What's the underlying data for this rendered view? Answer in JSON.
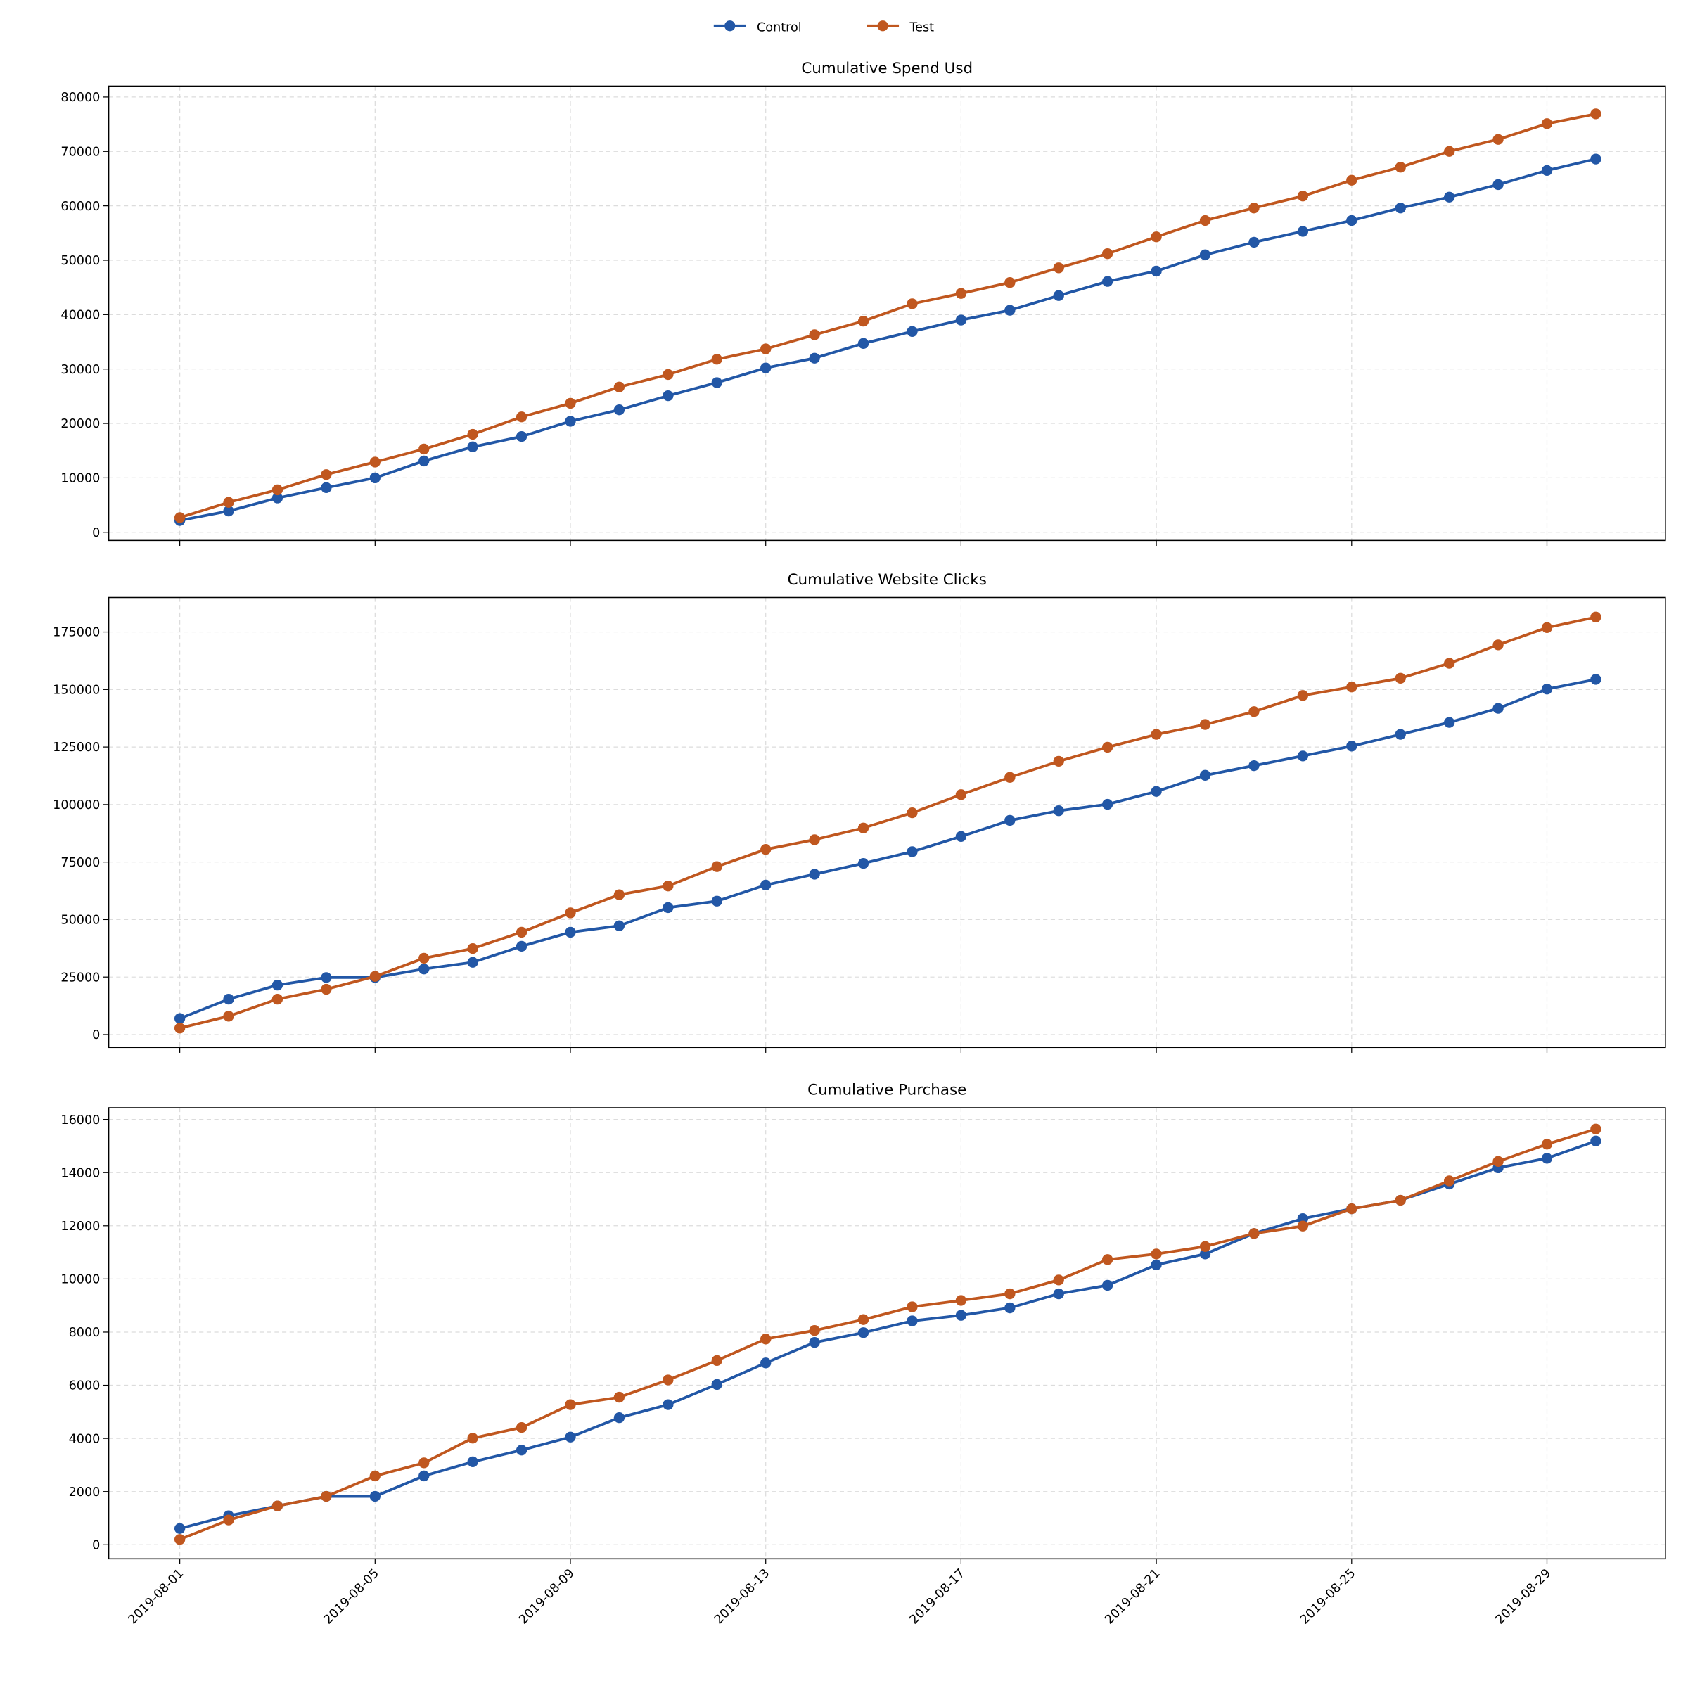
{
  "chart_data": [
    {
      "type": "line",
      "title": "Cumulative Spend Usd",
      "x": [
        "2019-08-01",
        "2019-08-02",
        "2019-08-03",
        "2019-08-04",
        "2019-08-05",
        "2019-08-06",
        "2019-08-07",
        "2019-08-08",
        "2019-08-09",
        "2019-08-10",
        "2019-08-11",
        "2019-08-12",
        "2019-08-13",
        "2019-08-14",
        "2019-08-15",
        "2019-08-16",
        "2019-08-17",
        "2019-08-18",
        "2019-08-19",
        "2019-08-20",
        "2019-08-21",
        "2019-08-22",
        "2019-08-23",
        "2019-08-24",
        "2019-08-25",
        "2019-08-26",
        "2019-08-27",
        "2019-08-28",
        "2019-08-29",
        "2019-08-30"
      ],
      "ylim": [
        -1500,
        82000
      ],
      "yticks": [
        0,
        10000,
        20000,
        30000,
        40000,
        50000,
        60000,
        70000,
        80000
      ],
      "grid": true,
      "series": [
        {
          "name": "Control",
          "values": [
            2160,
            3900,
            6300,
            8200,
            10000,
            13100,
            15700,
            17600,
            20400,
            22500,
            25100,
            27500,
            30200,
            32000,
            34700,
            36900,
            39000,
            40800,
            43500,
            46100,
            48000,
            51000,
            53300,
            55300,
            57300,
            59600,
            61600,
            63900,
            66500,
            68600
          ]
        },
        {
          "name": "Test",
          "values": [
            2700,
            5500,
            7800,
            10600,
            12900,
            15300,
            18000,
            21200,
            23700,
            26700,
            29000,
            31800,
            33700,
            36300,
            38800,
            42000,
            43900,
            45900,
            48600,
            51200,
            54300,
            57300,
            59600,
            61800,
            64700,
            67100,
            70000,
            72200,
            75100,
            76900
          ]
        }
      ]
    },
    {
      "type": "line",
      "title": "Cumulative Website Clicks",
      "x": [
        "2019-08-01",
        "2019-08-02",
        "2019-08-03",
        "2019-08-04",
        "2019-08-05",
        "2019-08-06",
        "2019-08-07",
        "2019-08-08",
        "2019-08-09",
        "2019-08-10",
        "2019-08-11",
        "2019-08-12",
        "2019-08-13",
        "2019-08-14",
        "2019-08-15",
        "2019-08-16",
        "2019-08-17",
        "2019-08-18",
        "2019-08-19",
        "2019-08-20",
        "2019-08-21",
        "2019-08-22",
        "2019-08-23",
        "2019-08-24",
        "2019-08-25",
        "2019-08-26",
        "2019-08-27",
        "2019-08-28",
        "2019-08-29",
        "2019-08-30"
      ],
      "ylim": [
        -5600,
        190000
      ],
      "yticks": [
        0,
        25000,
        50000,
        75000,
        100000,
        125000,
        150000,
        175000
      ],
      "grid": true,
      "series": [
        {
          "name": "Control",
          "values": [
            7000,
            15400,
            21500,
            24800,
            24800,
            28500,
            31400,
            38400,
            44500,
            47300,
            55200,
            58000,
            65000,
            69700,
            74400,
            79500,
            86100,
            93100,
            97300,
            100100,
            105700,
            112700,
            116900,
            121100,
            125400,
            130500,
            135700,
            141800,
            150200,
            154400
          ]
        },
        {
          "name": "Test",
          "values": [
            2800,
            8000,
            15400,
            19700,
            25300,
            33200,
            37400,
            44500,
            52900,
            60800,
            64600,
            73000,
            80500,
            84700,
            89800,
            96400,
            104300,
            111800,
            118800,
            124900,
            130500,
            134800,
            140400,
            147400,
            151100,
            154900,
            161400,
            169400,
            176900,
            181500
          ]
        }
      ]
    },
    {
      "type": "line",
      "title": "Cumulative Purchase",
      "x": [
        "2019-08-01",
        "2019-08-02",
        "2019-08-03",
        "2019-08-04",
        "2019-08-05",
        "2019-08-06",
        "2019-08-07",
        "2019-08-08",
        "2019-08-09",
        "2019-08-10",
        "2019-08-11",
        "2019-08-12",
        "2019-08-13",
        "2019-08-14",
        "2019-08-15",
        "2019-08-16",
        "2019-08-17",
        "2019-08-18",
        "2019-08-19",
        "2019-08-20",
        "2019-08-21",
        "2019-08-22",
        "2019-08-23",
        "2019-08-24",
        "2019-08-25",
        "2019-08-26",
        "2019-08-27",
        "2019-08-28",
        "2019-08-29",
        "2019-08-30"
      ],
      "ylim": [
        -530,
        16440
      ],
      "yticks": [
        0,
        2000,
        4000,
        6000,
        8000,
        10000,
        12000,
        14000,
        16000
      ],
      "grid": true,
      "series": [
        {
          "name": "Control",
          "values": [
            610,
            1090,
            1460,
            1820,
            1820,
            2590,
            3120,
            3560,
            4050,
            4780,
            5270,
            6030,
            6840,
            7610,
            7980,
            8420,
            8630,
            8910,
            9440,
            9760,
            10530,
            10940,
            11710,
            12270,
            12640,
            12960,
            13570,
            14180,
            14540,
            15190
          ]
        },
        {
          "name": "Test",
          "values": [
            200,
            930,
            1460,
            1820,
            2590,
            3080,
            4010,
            4410,
            5270,
            5550,
            6200,
            6930,
            7740,
            8060,
            8470,
            8950,
            9190,
            9440,
            9960,
            10730,
            10940,
            11220,
            11710,
            11990,
            12640,
            12960,
            13690,
            14420,
            15070,
            15640
          ]
        }
      ]
    }
  ],
  "xticks": [
    "2019-08-01",
    "2019-08-05",
    "2019-08-09",
    "2019-08-13",
    "2019-08-17",
    "2019-08-21",
    "2019-08-25",
    "2019-08-29"
  ],
  "legend": {
    "placement": "top-center",
    "items": [
      "Control",
      "Test"
    ]
  },
  "colors": {
    "Control": "#2257a6",
    "Test": "#c0571f"
  }
}
